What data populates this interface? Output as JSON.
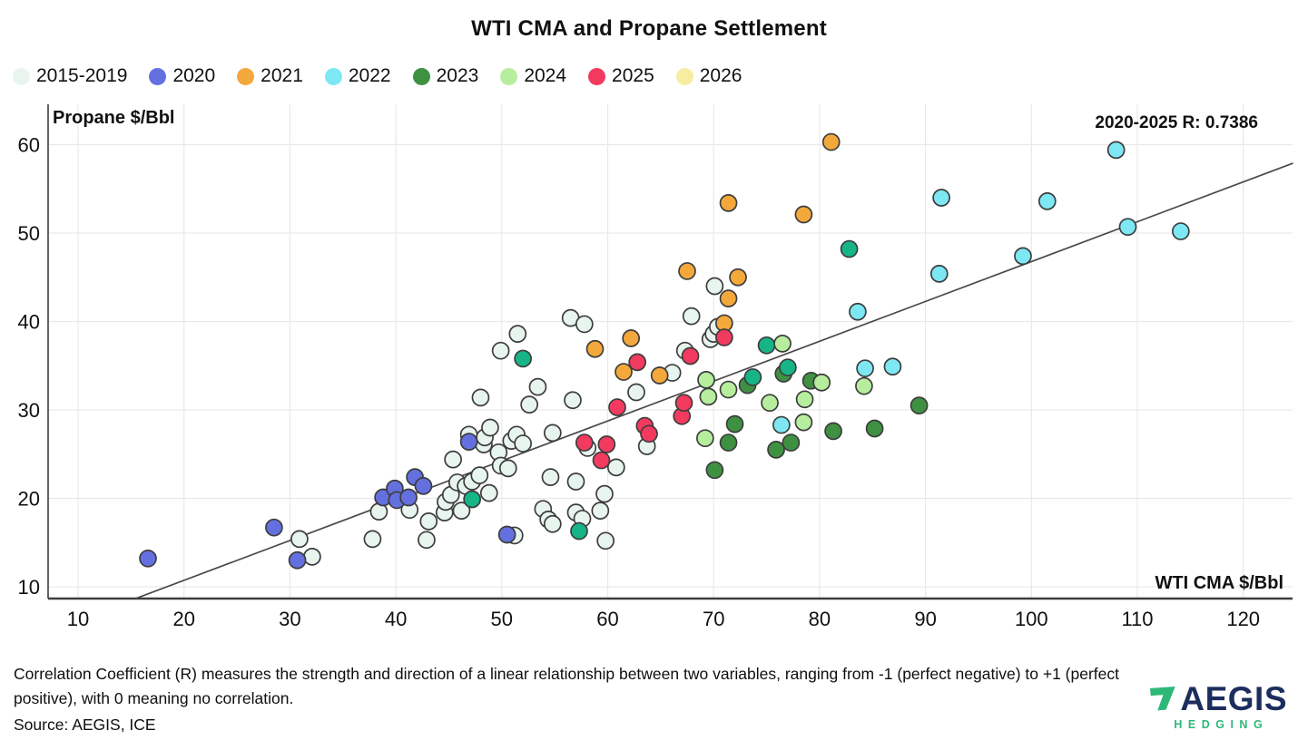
{
  "title": "WTI CMA and Propane Settlement",
  "annotation": "2020-2025 R: 0.7386",
  "y_axis_title": "Propane $/Bbl",
  "x_axis_title": "WTI CMA $/Bbl",
  "footnote": "Correlation Coefficient (R) measures the strength and direction of a linear relationship between two variables, ranging from -1 (perfect negative) to +1 (perfect positive), with 0 meaning no correlation.",
  "source": "Source: AEGIS, ICE",
  "logo": {
    "brand": "AEGIS",
    "sub": "HEDGING",
    "mark_color": "#2eb878",
    "brand_color": "#1c2d5e"
  },
  "legend": [
    {
      "label": "2015-2019",
      "color": "#e8f5ee"
    },
    {
      "label": "2020",
      "color": "#6470df"
    },
    {
      "label": "2021",
      "color": "#f3a83b"
    },
    {
      "label": "2022",
      "color": "#7de8f4"
    },
    {
      "label": "2023",
      "color": "#3f9142"
    },
    {
      "label": "2024",
      "color": "#b6ee9d"
    },
    {
      "label": "2025",
      "color": "#f23a5f"
    },
    {
      "label": "2026",
      "color": "#f6eda1"
    }
  ],
  "chart_data": {
    "type": "scatter",
    "title": "WTI CMA and Propane Settlement",
    "xlabel": "WTI CMA $/Bbl",
    "ylabel": "Propane $/Bbl",
    "xlim": [
      7.2,
      124.7
    ],
    "ylim": [
      8.7,
      64.6
    ],
    "x_ticks": [
      10,
      20,
      30,
      40,
      50,
      60,
      70,
      80,
      90,
      100,
      110,
      120
    ],
    "y_ticks": [
      10,
      20,
      30,
      40,
      50,
      60
    ],
    "grid": true,
    "annotation": "2020-2025 R: 0.7386",
    "marker": {
      "radius": 9,
      "stroke": "#3d3d3d",
      "stroke_width": 1.7
    },
    "trendline": {
      "x1": 15.5,
      "y1": 8.7,
      "x2": 124.7,
      "y2": 57.9,
      "color": "#4a4a4a"
    },
    "series": [
      {
        "name": "2015-2019",
        "color": "#e8f5ee",
        "points": [
          [
            30.9,
            15.4
          ],
          [
            32.1,
            13.4
          ],
          [
            37.8,
            15.4
          ],
          [
            38.4,
            18.5
          ],
          [
            41.3,
            18.7
          ],
          [
            42.9,
            15.3
          ],
          [
            43.1,
            17.4
          ],
          [
            44.6,
            18.4
          ],
          [
            44.7,
            19.6
          ],
          [
            45.4,
            24.4
          ],
          [
            45.2,
            20.4
          ],
          [
            45.8,
            21.8
          ],
          [
            46.2,
            18.6
          ],
          [
            46.6,
            21.4
          ],
          [
            46.9,
            27.2
          ],
          [
            47.2,
            21.9
          ],
          [
            47.9,
            22.6
          ],
          [
            48.0,
            31.4
          ],
          [
            48.3,
            26.1
          ],
          [
            48.4,
            26.9
          ],
          [
            48.8,
            20.6
          ],
          [
            48.9,
            28.0
          ],
          [
            49.7,
            25.2
          ],
          [
            49.9,
            23.7
          ],
          [
            49.9,
            36.7
          ],
          [
            50.6,
            23.4
          ],
          [
            50.9,
            26.5
          ],
          [
            51.2,
            15.8
          ],
          [
            51.4,
            27.2
          ],
          [
            51.5,
            38.6
          ],
          [
            52.0,
            26.2
          ],
          [
            52.6,
            30.6
          ],
          [
            53.4,
            32.6
          ],
          [
            53.9,
            18.8
          ],
          [
            54.4,
            17.6
          ],
          [
            54.6,
            22.4
          ],
          [
            54.8,
            17.1
          ],
          [
            54.8,
            27.4
          ],
          [
            56.5,
            40.4
          ],
          [
            56.7,
            31.1
          ],
          [
            57.0,
            21.9
          ],
          [
            57.0,
            18.4
          ],
          [
            57.6,
            17.7
          ],
          [
            57.8,
            39.7
          ],
          [
            58.1,
            25.7
          ],
          [
            59.3,
            18.6
          ],
          [
            59.7,
            20.5
          ],
          [
            59.8,
            15.2
          ],
          [
            60.8,
            23.5
          ],
          [
            62.7,
            32.0
          ],
          [
            63.7,
            25.9
          ],
          [
            66.1,
            34.2
          ],
          [
            67.3,
            36.7
          ],
          [
            67.9,
            40.6
          ],
          [
            69.7,
            38.0
          ],
          [
            70.0,
            38.6
          ],
          [
            70.1,
            44.0
          ],
          [
            70.4,
            39.4
          ]
        ]
      },
      {
        "name": "2020",
        "color": "#6470df",
        "points": [
          [
            16.6,
            13.2
          ],
          [
            28.5,
            16.7
          ],
          [
            30.7,
            13.0
          ],
          [
            38.8,
            20.1
          ],
          [
            39.9,
            21.1
          ],
          [
            40.1,
            19.8
          ],
          [
            41.2,
            20.1
          ],
          [
            41.8,
            22.4
          ],
          [
            42.6,
            21.4
          ],
          [
            46.9,
            26.4
          ],
          [
            50.5,
            15.9
          ]
        ]
      },
      {
        "name": "2021",
        "color": "#f3a83b",
        "points": [
          [
            58.8,
            36.9
          ],
          [
            61.5,
            34.3
          ],
          [
            62.2,
            38.1
          ],
          [
            64.9,
            33.9
          ],
          [
            67.5,
            45.7
          ],
          [
            71.0,
            39.8
          ],
          [
            71.4,
            42.6
          ],
          [
            71.4,
            53.4
          ],
          [
            72.3,
            45.0
          ],
          [
            78.5,
            52.1
          ],
          [
            81.1,
            60.3
          ]
        ]
      },
      {
        "name": "2022",
        "color": "#7de8f4",
        "points": [
          [
            76.4,
            28.3
          ],
          [
            83.6,
            41.1
          ],
          [
            84.3,
            34.7
          ],
          [
            86.9,
            34.9
          ],
          [
            91.3,
            45.4
          ],
          [
            91.5,
            54.0
          ],
          [
            99.2,
            47.4
          ],
          [
            101.5,
            53.6
          ],
          [
            108.0,
            59.4
          ],
          [
            109.1,
            50.7
          ],
          [
            114.1,
            50.2
          ]
        ]
      },
      {
        "name": "2023",
        "color": "#3f9142",
        "points": [
          [
            70.1,
            23.2
          ],
          [
            71.4,
            26.3
          ],
          [
            72.0,
            28.4
          ],
          [
            73.2,
            32.8
          ],
          [
            75.9,
            25.5
          ],
          [
            76.6,
            34.1
          ],
          [
            77.3,
            26.3
          ],
          [
            79.2,
            33.3
          ],
          [
            81.3,
            27.6
          ],
          [
            85.2,
            27.9
          ],
          [
            89.4,
            30.5
          ]
        ]
      },
      {
        "name": "2023",
        "variant": "emerald",
        "color": "#16b487",
        "points": [
          [
            47.2,
            19.9
          ],
          [
            52.0,
            35.8
          ],
          [
            57.3,
            16.3
          ],
          [
            73.7,
            33.7
          ],
          [
            75.0,
            37.3
          ],
          [
            77.0,
            34.8
          ],
          [
            82.8,
            48.2
          ]
        ]
      },
      {
        "name": "2024",
        "color": "#b6ee9d",
        "points": [
          [
            69.2,
            26.8
          ],
          [
            69.3,
            33.4
          ],
          [
            69.5,
            31.5
          ],
          [
            71.4,
            32.3
          ],
          [
            75.3,
            30.8
          ],
          [
            76.5,
            37.5
          ],
          [
            78.5,
            28.6
          ],
          [
            78.6,
            31.2
          ],
          [
            80.2,
            33.1
          ],
          [
            84.2,
            32.7
          ]
        ]
      },
      {
        "name": "2025",
        "color": "#f23a5f",
        "points": [
          [
            57.8,
            26.3
          ],
          [
            59.4,
            24.3
          ],
          [
            59.9,
            26.1
          ],
          [
            60.9,
            30.3
          ],
          [
            62.8,
            35.4
          ],
          [
            63.5,
            28.2
          ],
          [
            63.9,
            27.3
          ],
          [
            67.0,
            29.3
          ],
          [
            67.2,
            30.8
          ],
          [
            67.8,
            36.1
          ],
          [
            71.0,
            38.2
          ]
        ]
      },
      {
        "name": "2026",
        "color": "#f6eda1",
        "points": []
      }
    ]
  }
}
